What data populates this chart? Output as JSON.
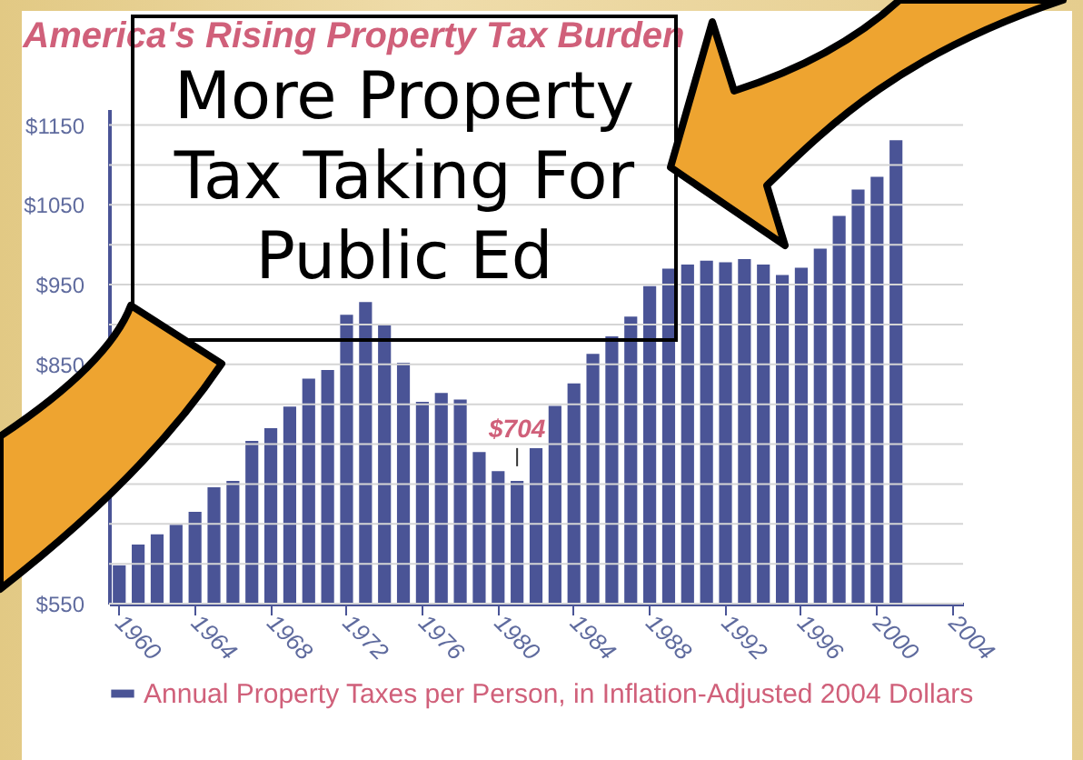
{
  "chart_data": {
    "type": "bar",
    "title": "America's Rising Property Tax Burden",
    "categories": [
      "1960",
      null,
      null,
      null,
      "1964",
      null,
      null,
      null,
      "1968",
      null,
      null,
      null,
      "1972",
      null,
      null,
      null,
      "1976",
      null,
      null,
      null,
      "1980",
      null,
      null,
      null,
      "1984",
      null,
      null,
      null,
      "1988",
      null,
      null,
      null,
      "1992",
      null,
      null,
      null,
      "1996",
      null,
      null,
      null,
      "2000",
      null,
      null,
      null,
      "2004"
    ],
    "series": [
      {
        "name": "Annual Property Taxes per Person, in Inflation-Adjusted 2004 Dollars",
        "color": "#4a5496",
        "values": [
          598,
          624,
          637,
          649,
          665,
          696,
          704,
          754,
          770,
          797,
          832,
          843,
          912,
          928,
          899,
          852,
          803,
          814,
          806,
          740,
          716,
          704,
          745,
          798,
          826,
          863,
          885,
          910,
          948,
          970,
          975,
          980,
          978,
          982,
          975,
          962,
          971,
          995,
          1036,
          1069,
          1085,
          1131,
          null,
          null,
          null
        ],
        "value_labels": [
          null,
          null,
          null,
          null,
          null,
          null,
          null,
          null,
          null,
          null,
          null,
          null,
          null,
          null,
          null,
          null,
          null,
          null,
          null,
          null,
          null,
          "$704",
          null,
          null,
          null,
          null,
          null,
          null,
          null,
          null,
          null,
          null,
          null,
          null,
          null,
          null,
          null,
          null,
          null,
          null,
          null,
          null,
          null,
          null,
          null
        ]
      }
    ],
    "ylim": [
      550,
      1170
    ],
    "yticks": [
      {
        "value": 550,
        "label": "$550"
      },
      {
        "value": 600,
        "label": null
      },
      {
        "value": 650,
        "label": null
      },
      {
        "value": 700,
        "label": null
      },
      {
        "value": 750,
        "label": null
      },
      {
        "value": 800,
        "label": null
      },
      {
        "value": 850,
        "label": "$850"
      },
      {
        "value": 900,
        "label": null
      },
      {
        "value": 950,
        "label": "$950"
      },
      {
        "value": 1000,
        "label": null
      },
      {
        "value": 1050,
        "label": "$1050"
      },
      {
        "value": 1100,
        "label": null
      },
      {
        "value": 1150,
        "label": "$1150"
      }
    ],
    "grid": "y",
    "legend": "bottom",
    "annotations": [
      "More Property Tax Taking For Public Ed"
    ]
  }
}
